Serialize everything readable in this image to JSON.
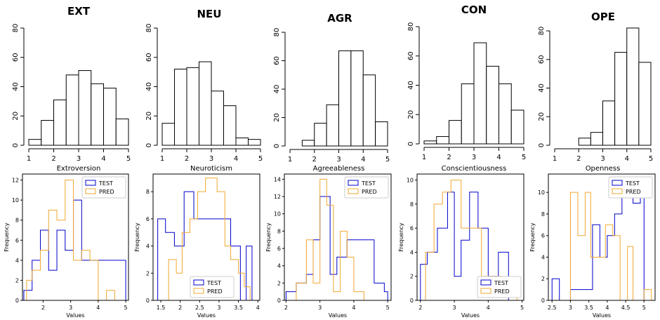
{
  "colors": {
    "test": "#0000cc",
    "pred": "#f0a830",
    "bars": "#000000"
  },
  "top_charts": [
    {
      "title": "EXT",
      "xlabel": "Extroversion",
      "type": "bar",
      "bin_edges": [
        1,
        1.5,
        2,
        2.5,
        3,
        3.5,
        4,
        4.5,
        5
      ],
      "values": [
        4,
        17,
        31,
        48,
        51,
        42,
        39,
        18
      ],
      "xlim": [
        1,
        5
      ],
      "ylim": [
        0,
        80
      ],
      "xticks": [
        "1",
        "2",
        "3",
        "4",
        "5"
      ],
      "yticks": [
        "0",
        "20",
        "40",
        "60",
        "80"
      ]
    },
    {
      "title": "NEU",
      "xlabel": "Neuroticism",
      "type": "bar",
      "bin_edges": [
        1,
        1.5,
        2,
        2.5,
        3,
        3.5,
        4,
        4.5,
        5
      ],
      "values": [
        15,
        52,
        53,
        57,
        37,
        27,
        5,
        4
      ],
      "xlim": [
        1,
        5
      ],
      "ylim": [
        0,
        80
      ],
      "xticks": [
        "1",
        "2",
        "3",
        "4",
        "5"
      ],
      "yticks": [
        "0",
        "20",
        "40",
        "60",
        "80"
      ]
    },
    {
      "title": "AGR",
      "xlabel": "Agreeableness",
      "type": "bar",
      "bin_edges": [
        1,
        1.5,
        2,
        2.5,
        3,
        3.5,
        4,
        4.5,
        5
      ],
      "values": [
        0,
        4,
        16,
        29,
        67,
        67,
        50,
        17
      ],
      "xlim": [
        1,
        5
      ],
      "ylim": [
        0,
        80
      ],
      "xticks": [
        "1",
        "2",
        "3",
        "4",
        "5"
      ],
      "yticks": [
        "0",
        "20",
        "40",
        "60",
        "80"
      ]
    },
    {
      "title": "CON",
      "xlabel": "Conscientiousness",
      "type": "bar",
      "bin_edges": [
        1,
        1.5,
        2,
        2.5,
        3,
        3.5,
        4,
        4.5,
        5
      ],
      "values": [
        2,
        5,
        16,
        41,
        69,
        53,
        41,
        23
      ],
      "xlim": [
        1,
        5
      ],
      "ylim": [
        0,
        80
      ],
      "xticks": [
        "1",
        "2",
        "3",
        "4",
        "5"
      ],
      "yticks": [
        "0",
        "20",
        "40",
        "60",
        "80"
      ]
    },
    {
      "title": "OPE",
      "xlabel": "Openness",
      "type": "bar",
      "bin_edges": [
        1,
        1.5,
        2,
        2.5,
        3,
        3.5,
        4,
        4.5,
        5
      ],
      "values": [
        0,
        0,
        5,
        9,
        31,
        65,
        82,
        58
      ],
      "xlim": [
        1,
        5
      ],
      "ylim": [
        0,
        80
      ],
      "xticks": [
        "1",
        "2",
        "3",
        "4",
        "5"
      ],
      "yticks": [
        "0",
        "20",
        "40",
        "60",
        "80"
      ]
    }
  ],
  "bottom_charts": [
    {
      "type": "step-histogram",
      "xlabel": "Values",
      "ylabel": "Frequency",
      "xlim": [
        1.25,
        5.1
      ],
      "ylim": [
        0,
        12.6
      ],
      "xticks": [
        2,
        3,
        4,
        5
      ],
      "yticks": [
        0,
        2,
        4,
        6,
        8,
        10,
        12
      ],
      "legend_position": "top-right",
      "series": [
        {
          "name": "TEST",
          "color": "#0000cc",
          "edges": [
            1.3,
            1.6,
            1.9,
            2.2,
            2.5,
            2.8,
            3.1,
            3.4,
            3.7,
            4.0,
            4.3,
            4.6,
            5.0
          ],
          "values": [
            1,
            4,
            7,
            3,
            7,
            5,
            10,
            4,
            4,
            4,
            4,
            4
          ]
        },
        {
          "name": "PRED",
          "color": "#f0a830",
          "edges": [
            1.4,
            1.6,
            1.9,
            2.2,
            2.5,
            2.8,
            3.1,
            3.4,
            3.7,
            4.0,
            4.3,
            4.6
          ],
          "values": [
            2,
            3,
            5,
            9,
            8,
            12,
            4,
            5,
            4,
            0,
            1
          ]
        }
      ]
    },
    {
      "type": "step-histogram",
      "xlabel": "Values",
      "ylabel": "Frequency",
      "xlim": [
        1.3,
        4.05
      ],
      "ylim": [
        0,
        9.3
      ],
      "xticks": [
        1.5,
        2.0,
        2.5,
        3.0,
        3.5,
        4.0
      ],
      "yticks": [
        0,
        2,
        4,
        6,
        8
      ],
      "legend_position": "bottom-center",
      "series": [
        {
          "name": "TEST",
          "color": "#0000cc",
          "edges": [
            1.42,
            1.62,
            1.85,
            2.1,
            2.35,
            2.55,
            2.8,
            3.05,
            3.3,
            3.55,
            3.7,
            3.85,
            4.0
          ],
          "values": [
            6,
            5,
            4,
            8,
            6,
            6,
            6,
            6,
            4,
            0,
            4,
            0
          ]
        },
        {
          "name": "PRED",
          "color": "#f0a830",
          "edges": [
            1.7,
            1.9,
            2.05,
            2.25,
            2.45,
            2.65,
            2.95,
            3.15,
            3.3,
            3.5,
            3.65,
            3.8
          ],
          "values": [
            3,
            2,
            5,
            6,
            8,
            9,
            8,
            4,
            3,
            2,
            1
          ]
        }
      ]
    },
    {
      "type": "step-histogram",
      "xlabel": "Values",
      "ylabel": "Frequency",
      "xlim": [
        1.95,
        5.1
      ],
      "ylim": [
        0,
        14.6
      ],
      "xticks": [
        2,
        3,
        4,
        5
      ],
      "yticks": [
        0,
        2,
        4,
        6,
        8,
        10,
        12,
        14
      ],
      "legend_position": "top-right",
      "series": [
        {
          "name": "TEST",
          "color": "#0000cc",
          "edges": [
            2.0,
            2.3,
            2.6,
            2.8,
            3.0,
            3.3,
            3.5,
            3.8,
            4.2,
            4.6,
            4.9,
            5.0
          ],
          "values": [
            1,
            2,
            3,
            7,
            12,
            3,
            5,
            7,
            7,
            2,
            1
          ]
        },
        {
          "name": "PRED",
          "color": "#f0a830",
          "edges": [
            2.3,
            2.6,
            2.8,
            3.0,
            3.2,
            3.4,
            3.6,
            3.8,
            4.0,
            4.3
          ],
          "values": [
            2,
            7,
            2,
            14,
            11,
            1,
            8,
            5,
            1
          ]
        }
      ]
    },
    {
      "type": "step-histogram",
      "xlabel": "Values",
      "ylabel": "Frequency",
      "xlim": [
        1.9,
        5.05
      ],
      "ylim": [
        0,
        10.5
      ],
      "xticks": [
        2,
        3,
        4,
        5
      ],
      "yticks": [
        0,
        2,
        4,
        6,
        8,
        10
      ],
      "legend_position": "bottom-right",
      "series": [
        {
          "name": "TEST",
          "color": "#0000cc",
          "edges": [
            2.0,
            2.2,
            2.5,
            2.8,
            3.0,
            3.2,
            3.45,
            3.7,
            4.0,
            4.3,
            4.6,
            4.8
          ],
          "values": [
            3,
            4,
            6,
            9,
            2,
            5,
            9,
            6,
            2,
            4,
            0
          ]
        },
        {
          "name": "PRED",
          "color": "#f0a830",
          "edges": [
            1.95,
            2.15,
            2.4,
            2.65,
            2.9,
            3.2,
            3.5,
            3.8,
            4.1,
            4.4,
            4.7,
            4.85
          ],
          "values": [
            0,
            4,
            8,
            9,
            10,
            6,
            6,
            2,
            2,
            1,
            1
          ]
        }
      ]
    },
    {
      "type": "step-histogram",
      "xlabel": "Values",
      "ylabel": "Frequency",
      "xlim": [
        2.4,
        5.3
      ],
      "ylim": [
        0,
        11.7
      ],
      "xticks": [
        2.5,
        3.0,
        3.5,
        4.0,
        4.5,
        5.0
      ],
      "yticks": [
        0,
        2,
        4,
        6,
        8,
        10
      ],
      "legend_position": "top-right",
      "series": [
        {
          "name": "TEST",
          "color": "#0000cc",
          "edges": [
            2.5,
            2.7,
            3.0,
            3.3,
            3.6,
            3.8,
            4.0,
            4.2,
            4.4,
            4.7,
            4.9,
            5.0
          ],
          "values": [
            2,
            0,
            1,
            1,
            7,
            4,
            6,
            8,
            11,
            9,
            11
          ]
        },
        {
          "name": "PRED",
          "color": "#f0a830",
          "edges": [
            3.0,
            3.2,
            3.4,
            3.55,
            3.75,
            3.95,
            4.15,
            4.35,
            4.55,
            4.7,
            4.85,
            5.0,
            5.2
          ],
          "values": [
            10,
            6,
            10,
            4,
            4,
            7,
            6,
            0,
            5,
            0,
            0,
            1
          ]
        }
      ]
    }
  ]
}
